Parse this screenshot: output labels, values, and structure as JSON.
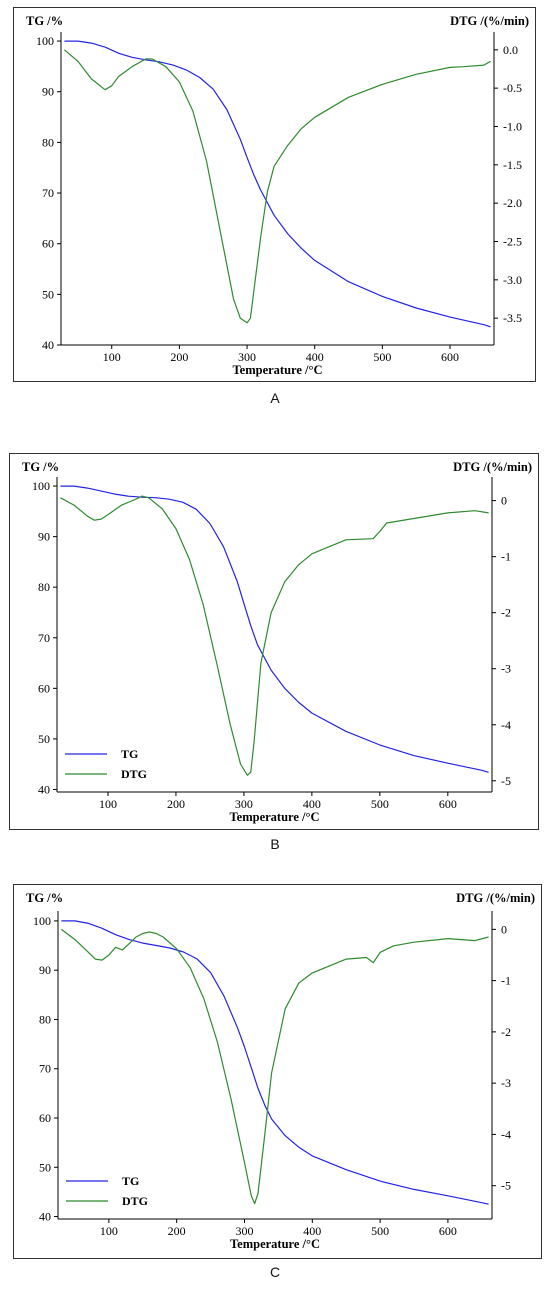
{
  "figure": {
    "panels": [
      {
        "caption": "A"
      },
      {
        "caption": "B"
      },
      {
        "caption": "C"
      }
    ]
  },
  "colors": {
    "TG": "#2323e6",
    "DTG": "#2e8b2e",
    "axis": "#000000"
  },
  "chart_data": [
    {
      "type": "line",
      "panel": "A",
      "xlabel": "Temperature /°C",
      "ylabel_left": "TG /%",
      "ylabel_right": "DTG /(%/min)",
      "xlim": [
        25,
        665
      ],
      "ylim_left": [
        40,
        101
      ],
      "ylim_right": [
        -3.85,
        0.18
      ],
      "xticks": [
        100,
        200,
        300,
        400,
        500,
        600
      ],
      "yticks_left": [
        40,
        50,
        60,
        70,
        80,
        90,
        100
      ],
      "yticks_right": [
        0.0,
        -0.5,
        -1.0,
        -1.5,
        -2.0,
        -2.5,
        -3.0,
        -3.5
      ],
      "yticklabels_right": [
        "0.0",
        "-0.5",
        "-1.0",
        "-1.5",
        "-2.0",
        "-2.5",
        "-3.0",
        "-3.5"
      ],
      "legend": null,
      "series": [
        {
          "key": "TG",
          "axis": "left",
          "x": [
            30,
            50,
            70,
            90,
            110,
            130,
            150,
            170,
            190,
            210,
            230,
            250,
            270,
            290,
            300,
            310,
            320,
            340,
            360,
            380,
            400,
            450,
            500,
            550,
            600,
            650,
            660
          ],
          "y": [
            100,
            100,
            99.6,
            98.8,
            97.6,
            96.8,
            96.3,
            95.9,
            95.3,
            94.3,
            92.8,
            90.5,
            86.5,
            80.6,
            77,
            73.6,
            70.6,
            65.6,
            62,
            59.1,
            56.7,
            52.5,
            49.6,
            47.3,
            45.5,
            44,
            43.6
          ]
        },
        {
          "key": "DTG",
          "axis": "right",
          "x": [
            30,
            50,
            70,
            90,
            100,
            110,
            130,
            150,
            160,
            180,
            200,
            220,
            240,
            260,
            280,
            290,
            300,
            305,
            310,
            320,
            330,
            340,
            360,
            380,
            400,
            450,
            500,
            550,
            600,
            620,
            650,
            660
          ],
          "y": [
            0.0,
            -0.15,
            -0.38,
            -0.52,
            -0.47,
            -0.35,
            -0.22,
            -0.12,
            -0.12,
            -0.22,
            -0.42,
            -0.8,
            -1.45,
            -2.35,
            -3.25,
            -3.5,
            -3.56,
            -3.5,
            -3.15,
            -2.45,
            -1.85,
            -1.52,
            -1.25,
            -1.03,
            -0.88,
            -0.62,
            -0.45,
            -0.32,
            -0.23,
            -0.22,
            -0.2,
            -0.15
          ]
        }
      ]
    },
    {
      "type": "line",
      "panel": "B",
      "xlabel": "Temperature /°C",
      "ylabel_left": "TG /%",
      "ylabel_right": "DTG /(%/min)",
      "xlim": [
        25,
        665
      ],
      "ylim_left": [
        39.5,
        101
      ],
      "ylim_right": [
        -5.2,
        0.35
      ],
      "xticks": [
        100,
        200,
        300,
        400,
        500,
        600
      ],
      "yticks_left": [
        40,
        50,
        60,
        70,
        80,
        90,
        100
      ],
      "yticks_right": [
        0,
        -1,
        -2,
        -3,
        -4,
        -5
      ],
      "yticklabels_right": [
        "0",
        "-1",
        "-2",
        "-3",
        "-4",
        "-5"
      ],
      "legend": {
        "position": "bottom-left",
        "entries": [
          "TG",
          "DTG"
        ]
      },
      "series": [
        {
          "key": "TG",
          "axis": "left",
          "x": [
            30,
            50,
            70,
            90,
            110,
            130,
            150,
            170,
            190,
            210,
            230,
            250,
            270,
            290,
            300,
            310,
            320,
            340,
            360,
            380,
            400,
            450,
            500,
            550,
            600,
            650,
            660
          ],
          "y": [
            100,
            100,
            99.6,
            99,
            98.4,
            98,
            97.8,
            97.7,
            97.4,
            96.8,
            95.4,
            92.6,
            88,
            81.2,
            76.8,
            72.4,
            68.6,
            63.6,
            60,
            57.3,
            55.1,
            51.5,
            48.8,
            46.7,
            45.2,
            43.8,
            43.4
          ]
        },
        {
          "key": "DTG",
          "axis": "right",
          "x": [
            30,
            50,
            70,
            80,
            90,
            100,
            120,
            140,
            150,
            160,
            180,
            200,
            220,
            240,
            260,
            280,
            295,
            305,
            310,
            315,
            325,
            340,
            360,
            380,
            400,
            450,
            490,
            500,
            510,
            550,
            600,
            640,
            660
          ],
          "y": [
            0.05,
            -0.08,
            -0.28,
            -0.35,
            -0.33,
            -0.25,
            -0.08,
            0.02,
            0.08,
            0.05,
            -0.15,
            -0.5,
            -1.05,
            -1.85,
            -2.9,
            -4.0,
            -4.7,
            -4.9,
            -4.85,
            -4.3,
            -2.9,
            -2.0,
            -1.45,
            -1.15,
            -0.95,
            -0.7,
            -0.68,
            -0.55,
            -0.4,
            -0.32,
            -0.22,
            -0.18,
            -0.22
          ]
        }
      ]
    },
    {
      "type": "line",
      "panel": "C",
      "xlabel": "Temperature /°C",
      "ylabel_left": "TG /%",
      "ylabel_right": "DTG /(%/min)",
      "xlim": [
        25,
        665
      ],
      "ylim_left": [
        39.5,
        101.2
      ],
      "ylim_right": [
        -5.65,
        0.28
      ],
      "xticks": [
        100,
        200,
        300,
        400,
        500,
        600
      ],
      "yticks_left": [
        40,
        50,
        60,
        70,
        80,
        90,
        100
      ],
      "yticks_right": [
        0,
        -1,
        -2,
        -3,
        -4,
        -5
      ],
      "yticklabels_right": [
        "0",
        "-1",
        "-2",
        "-3",
        "-4",
        "-5"
      ],
      "legend": {
        "position": "bottom-left",
        "entries": [
          "TG",
          "DTG"
        ]
      },
      "series": [
        {
          "key": "TG",
          "axis": "left",
          "x": [
            30,
            50,
            70,
            90,
            110,
            130,
            150,
            170,
            190,
            210,
            230,
            250,
            270,
            290,
            300,
            310,
            320,
            330,
            340,
            360,
            380,
            400,
            450,
            500,
            550,
            600,
            650,
            660
          ],
          "y": [
            100,
            100,
            99.5,
            98.5,
            97.2,
            96.2,
            95.5,
            95,
            94.5,
            93.7,
            92.3,
            89.5,
            84.7,
            78.2,
            74.4,
            70.2,
            66,
            62.6,
            59.8,
            56.4,
            54.1,
            52.3,
            49.5,
            47.2,
            45.5,
            44.2,
            42.8,
            42.5
          ]
        },
        {
          "key": "DTG",
          "axis": "right",
          "x": [
            30,
            50,
            70,
            80,
            90,
            100,
            110,
            120,
            130,
            140,
            150,
            160,
            170,
            180,
            200,
            220,
            240,
            260,
            280,
            300,
            310,
            315,
            320,
            330,
            340,
            360,
            380,
            400,
            450,
            480,
            490,
            500,
            520,
            550,
            600,
            640,
            660
          ],
          "y": [
            0.0,
            -0.2,
            -0.45,
            -0.58,
            -0.6,
            -0.5,
            -0.35,
            -0.4,
            -0.28,
            -0.15,
            -0.08,
            -0.05,
            -0.08,
            -0.15,
            -0.38,
            -0.75,
            -1.35,
            -2.2,
            -3.3,
            -4.55,
            -5.2,
            -5.35,
            -5.15,
            -4.0,
            -2.8,
            -1.55,
            -1.05,
            -0.85,
            -0.58,
            -0.55,
            -0.65,
            -0.45,
            -0.32,
            -0.25,
            -0.18,
            -0.22,
            -0.15
          ]
        }
      ]
    }
  ]
}
